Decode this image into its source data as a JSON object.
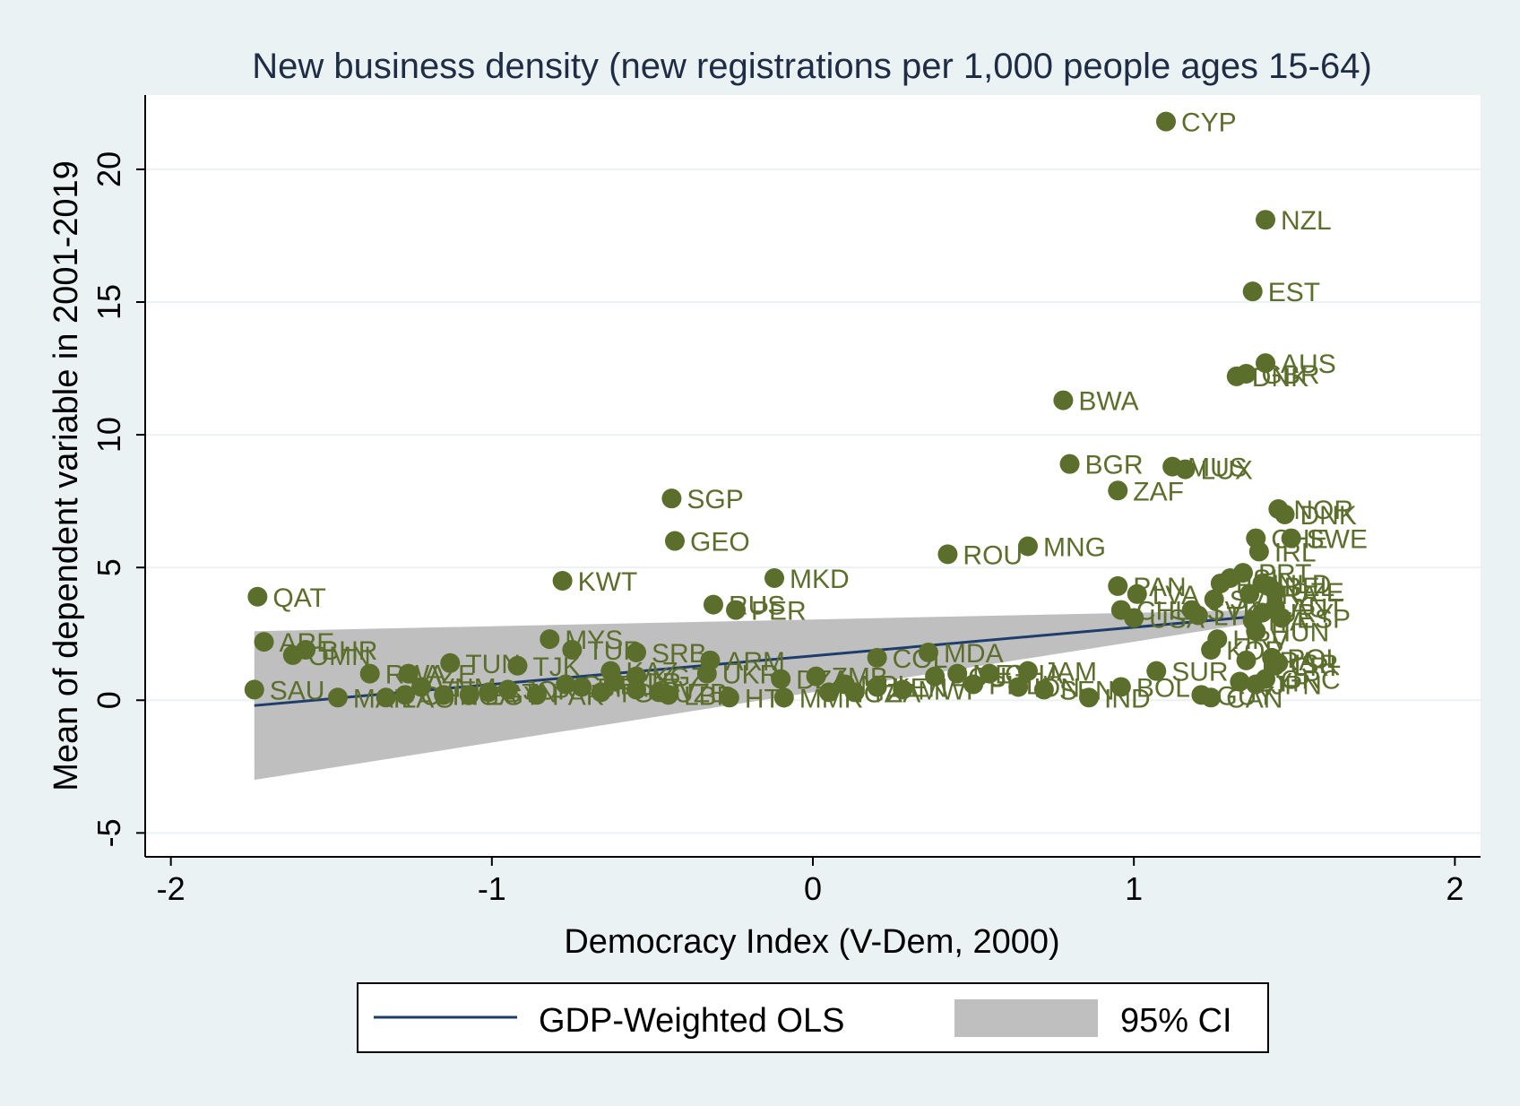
{
  "chart_data": {
    "type": "scatter",
    "title": "New business density (new registrations per 1,000 people ages 15-64)",
    "xlabel": "Democracy Index (V-Dem, 2000)",
    "ylabel": "Mean of dependent variable in 2001-2019",
    "xlim": [
      -2.08,
      2.08
    ],
    "ylim": [
      -5.9,
      22.8
    ],
    "xticks": [
      -2,
      -1,
      0,
      1,
      2
    ],
    "yticks": [
      -5,
      0,
      5,
      10,
      15,
      20
    ],
    "xtick_labels": [
      "-2",
      "-1",
      "0",
      "1",
      "2"
    ],
    "ytick_labels": [
      "-5",
      "0",
      "5",
      "10",
      "15",
      "20"
    ],
    "grid": "horizontal",
    "legend_position": "bottom",
    "colors": {
      "background": "#eaf2f3",
      "plot_area": "#ffffff",
      "point": "#5b6e2c",
      "label": "#5b6e2c",
      "fit_line": "#1f3d6b",
      "ci_band": "#bfbfbf",
      "title": "#1e2d45",
      "grid": "#eaf2f3"
    },
    "legend": [
      {
        "label": "GDP-Weighted OLS",
        "kind": "line"
      },
      {
        "label": "95% CI",
        "kind": "area"
      }
    ],
    "fit": {
      "x": [
        -1.74,
        1.42
      ],
      "y": [
        -0.2,
        3.2
      ]
    },
    "ci": {
      "x": [
        -1.74,
        1.42
      ],
      "upper": [
        2.6,
        3.4
      ],
      "lower": [
        -3.0,
        3.0
      ]
    },
    "points": [
      {
        "label": "CYP",
        "x": 1.1,
        "y": 21.8
      },
      {
        "label": "NZL",
        "x": 1.41,
        "y": 18.1
      },
      {
        "label": "EST",
        "x": 1.37,
        "y": 15.4
      },
      {
        "label": "AUS",
        "x": 1.41,
        "y": 12.7
      },
      {
        "label": "GBR",
        "x": 1.35,
        "y": 12.3
      },
      {
        "label": "DNK",
        "x": 1.32,
        "y": 12.2
      },
      {
        "label": "BWA",
        "x": 0.78,
        "y": 11.3
      },
      {
        "label": "BGR",
        "x": 0.8,
        "y": 8.9
      },
      {
        "label": "MUS",
        "x": 1.12,
        "y": 8.8
      },
      {
        "label": "LUX",
        "x": 1.16,
        "y": 8.7
      },
      {
        "label": "ZAF",
        "x": 0.95,
        "y": 7.9
      },
      {
        "label": "SGP",
        "x": -0.44,
        "y": 7.6
      },
      {
        "label": "NOR",
        "x": 1.45,
        "y": 7.2
      },
      {
        "label": "DNK",
        "x": 1.47,
        "y": 7.0
      },
      {
        "label": "GEO",
        "x": -0.43,
        "y": 6.0
      },
      {
        "label": "CHE",
        "x": 1.38,
        "y": 6.1
      },
      {
        "label": "SWE",
        "x": 1.49,
        "y": 6.1
      },
      {
        "label": "MNG",
        "x": 0.67,
        "y": 5.8
      },
      {
        "label": "IRL",
        "x": 1.39,
        "y": 5.6
      },
      {
        "label": "ROU",
        "x": 0.42,
        "y": 5.5
      },
      {
        "label": "MKD",
        "x": -0.12,
        "y": 4.6
      },
      {
        "label": "KWT",
        "x": -0.78,
        "y": 4.5
      },
      {
        "label": "QAT",
        "x": -1.73,
        "y": 3.9
      },
      {
        "label": "PRT",
        "x": 1.34,
        "y": 4.8
      },
      {
        "label": "ISL",
        "x": 1.3,
        "y": 4.6
      },
      {
        "label": "PAN",
        "x": 0.95,
        "y": 4.3
      },
      {
        "label": "FIN",
        "x": 1.27,
        "y": 4.4
      },
      {
        "label": "NLD",
        "x": 1.4,
        "y": 4.4
      },
      {
        "label": "BEL",
        "x": 1.42,
        "y": 4.3
      },
      {
        "label": "LVA",
        "x": 1.01,
        "y": 4.0
      },
      {
        "label": "FRA",
        "x": 1.36,
        "y": 4.0
      },
      {
        "label": "CZE",
        "x": 1.44,
        "y": 4.1
      },
      {
        "label": "SVN",
        "x": 1.25,
        "y": 3.8
      },
      {
        "label": "RUS",
        "x": -0.31,
        "y": 3.6
      },
      {
        "label": "PER",
        "x": -0.24,
        "y": 3.4
      },
      {
        "label": "CHL",
        "x": 0.96,
        "y": 3.4
      },
      {
        "label": "SVK",
        "x": 1.18,
        "y": 3.4
      },
      {
        "label": "URY",
        "x": 1.4,
        "y": 3.3
      },
      {
        "label": "AUT",
        "x": 1.44,
        "y": 3.5
      },
      {
        "label": "ESP",
        "x": 1.46,
        "y": 3.1
      },
      {
        "label": "USA",
        "x": 1.0,
        "y": 3.1
      },
      {
        "label": "LTU",
        "x": 1.2,
        "y": 3.2
      },
      {
        "label": "ITA",
        "x": 1.37,
        "y": 3.0
      },
      {
        "label": "HUN",
        "x": 1.38,
        "y": 2.6
      },
      {
        "label": "HRV",
        "x": 1.26,
        "y": 2.3
      },
      {
        "label": "ARE",
        "x": -1.71,
        "y": 2.2
      },
      {
        "label": "MYS",
        "x": -0.82,
        "y": 2.3
      },
      {
        "label": "BHR",
        "x": -1.58,
        "y": 1.9
      },
      {
        "label": "OMN",
        "x": -1.62,
        "y": 1.7
      },
      {
        "label": "TUR",
        "x": -0.75,
        "y": 1.9
      },
      {
        "label": "SRB",
        "x": -0.55,
        "y": 1.8
      },
      {
        "label": "KOR",
        "x": 1.24,
        "y": 1.9
      },
      {
        "label": "POL",
        "x": 1.43,
        "y": 1.6
      },
      {
        "label": "ARM",
        "x": -0.32,
        "y": 1.5
      },
      {
        "label": "MDA",
        "x": 0.36,
        "y": 1.8
      },
      {
        "label": "COL",
        "x": 0.2,
        "y": 1.6
      },
      {
        "label": "BRA",
        "x": 1.35,
        "y": 1.5
      },
      {
        "label": "CRI",
        "x": 1.44,
        "y": 1.3
      },
      {
        "label": "ISR",
        "x": 1.45,
        "y": 1.4
      },
      {
        "label": "TUN",
        "x": -1.13,
        "y": 1.4
      },
      {
        "label": "TJK",
        "x": -0.92,
        "y": 1.3
      },
      {
        "label": "JAM",
        "x": 0.67,
        "y": 1.1
      },
      {
        "label": "SUR",
        "x": 1.07,
        "y": 1.1
      },
      {
        "label": "RWA",
        "x": -1.38,
        "y": 1.0
      },
      {
        "label": "AZE",
        "x": -1.26,
        "y": 1.0
      },
      {
        "label": "KAZ",
        "x": -0.63,
        "y": 1.1
      },
      {
        "label": "UKR",
        "x": -0.33,
        "y": 1.0
      },
      {
        "label": "GHA",
        "x": 0.55,
        "y": 1.0
      },
      {
        "label": "MEX",
        "x": 0.45,
        "y": 1.0
      },
      {
        "label": "ECU",
        "x": 0.38,
        "y": 0.9
      },
      {
        "label": "GRC",
        "x": 1.41,
        "y": 0.8
      },
      {
        "label": "CYP",
        "x": 1.33,
        "y": 0.7
      },
      {
        "label": "JPN",
        "x": 1.38,
        "y": 0.6
      },
      {
        "label": "PHL",
        "x": 0.5,
        "y": 0.6
      },
      {
        "label": "IDN",
        "x": 0.64,
        "y": 0.5
      },
      {
        "label": "BOL",
        "x": 0.96,
        "y": 0.5
      },
      {
        "label": "IND",
        "x": 0.86,
        "y": 0.1
      },
      {
        "label": "GUY",
        "x": 1.21,
        "y": 0.2
      },
      {
        "label": "CAN",
        "x": 1.24,
        "y": 0.1
      },
      {
        "label": "SEN",
        "x": 0.72,
        "y": 0.4
      },
      {
        "label": "ZMB",
        "x": 0.01,
        "y": 0.9
      },
      {
        "label": "NPL",
        "x": 0.1,
        "y": 0.6
      },
      {
        "label": "KEN",
        "x": 0.2,
        "y": 0.5
      },
      {
        "label": "MWI",
        "x": 0.28,
        "y": 0.4
      },
      {
        "label": "TZA",
        "x": 0.13,
        "y": 0.3
      },
      {
        "label": "NGA",
        "x": 0.05,
        "y": 0.3
      },
      {
        "label": "DZA",
        "x": -0.1,
        "y": 0.8
      },
      {
        "label": "HTI",
        "x": -0.26,
        "y": 0.1
      },
      {
        "label": "MMR",
        "x": -0.09,
        "y": 0.1
      },
      {
        "label": "LBR",
        "x": -0.45,
        "y": 0.2
      },
      {
        "label": "CIV",
        "x": -0.55,
        "y": 0.4
      },
      {
        "label": "TGO",
        "x": -0.66,
        "y": 0.3
      },
      {
        "label": "BFA",
        "x": -0.72,
        "y": 0.5
      },
      {
        "label": "GAB",
        "x": -0.77,
        "y": 0.6
      },
      {
        "label": "PAK",
        "x": -0.86,
        "y": 0.2
      },
      {
        "label": "JOR",
        "x": -0.95,
        "y": 0.4
      },
      {
        "label": "BTN",
        "x": -1.01,
        "y": 0.3
      },
      {
        "label": "EGY",
        "x": -1.07,
        "y": 0.2
      },
      {
        "label": "UGA",
        "x": -1.15,
        "y": 0.2
      },
      {
        "label": "VNM",
        "x": -1.22,
        "y": 0.5
      },
      {
        "label": "LAO",
        "x": -1.33,
        "y": 0.1
      },
      {
        "label": "CHN",
        "x": -1.27,
        "y": 0.2
      },
      {
        "label": "BLR",
        "x": -0.62,
        "y": 0.7
      },
      {
        "label": "KGZ",
        "x": -0.55,
        "y": 0.9
      },
      {
        "label": "UZB",
        "x": -0.48,
        "y": 0.3
      },
      {
        "label": "SAU",
        "x": -1.74,
        "y": 0.4
      },
      {
        "label": "MAR",
        "x": -1.48,
        "y": 0.1
      }
    ]
  }
}
